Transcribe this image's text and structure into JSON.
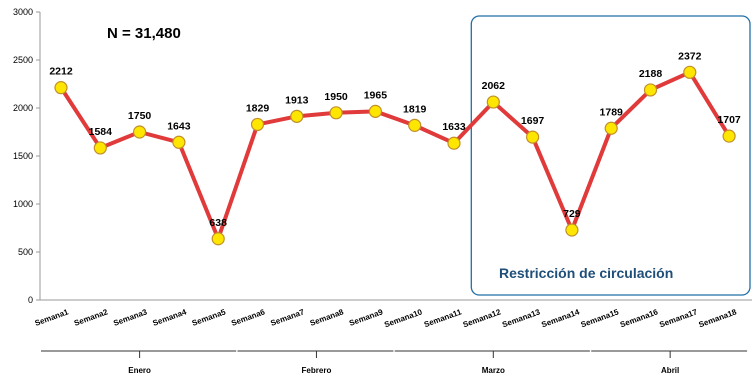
{
  "chart_data": {
    "type": "line",
    "annotation_n": "N = 31,480",
    "annotation_restriction": "Restricción de circulación",
    "categories": [
      "Semana1",
      "Semana2",
      "Semana3",
      "Semana4",
      "Semana5",
      "Semana6",
      "Semana7",
      "Semana8",
      "Semana9",
      "Semana10",
      "Semana11",
      "Semana12",
      "Semana13",
      "Semana14",
      "Semana15",
      "Semana16",
      "Semana17",
      "Semana18"
    ],
    "values": [
      2212,
      1584,
      1750,
      1643,
      638,
      1829,
      1913,
      1950,
      1965,
      1819,
      1633,
      2062,
      1697,
      729,
      1789,
      2188,
      2372,
      1707
    ],
    "data_labels": [
      "2212",
      "1584",
      "1750",
      "1643",
      "638",
      "1829",
      "1913",
      "1950",
      "1965",
      "1819",
      "1633",
      "2062",
      "1697",
      "729",
      "1789",
      "2188",
      "2372",
      "1707"
    ],
    "y_ticks": [
      0,
      500,
      1000,
      1500,
      2000,
      2500,
      3000
    ],
    "ylim": [
      0,
      3000
    ],
    "grid": false,
    "months": [
      {
        "label": "Enero",
        "from": 0,
        "to": 4
      },
      {
        "label": "Febrero",
        "from": 5,
        "to": 8
      },
      {
        "label": "Marzo",
        "from": 9,
        "to": 13
      },
      {
        "label": "Abril",
        "from": 14,
        "to": 17
      }
    ],
    "restriction_from_week": 11,
    "colors": {
      "line": "#e03a3a",
      "marker_fill": "#ffe600",
      "marker_stroke": "#c0902a",
      "box_stroke": "#1f6fa8",
      "axis": "#9a9a9a"
    }
  }
}
